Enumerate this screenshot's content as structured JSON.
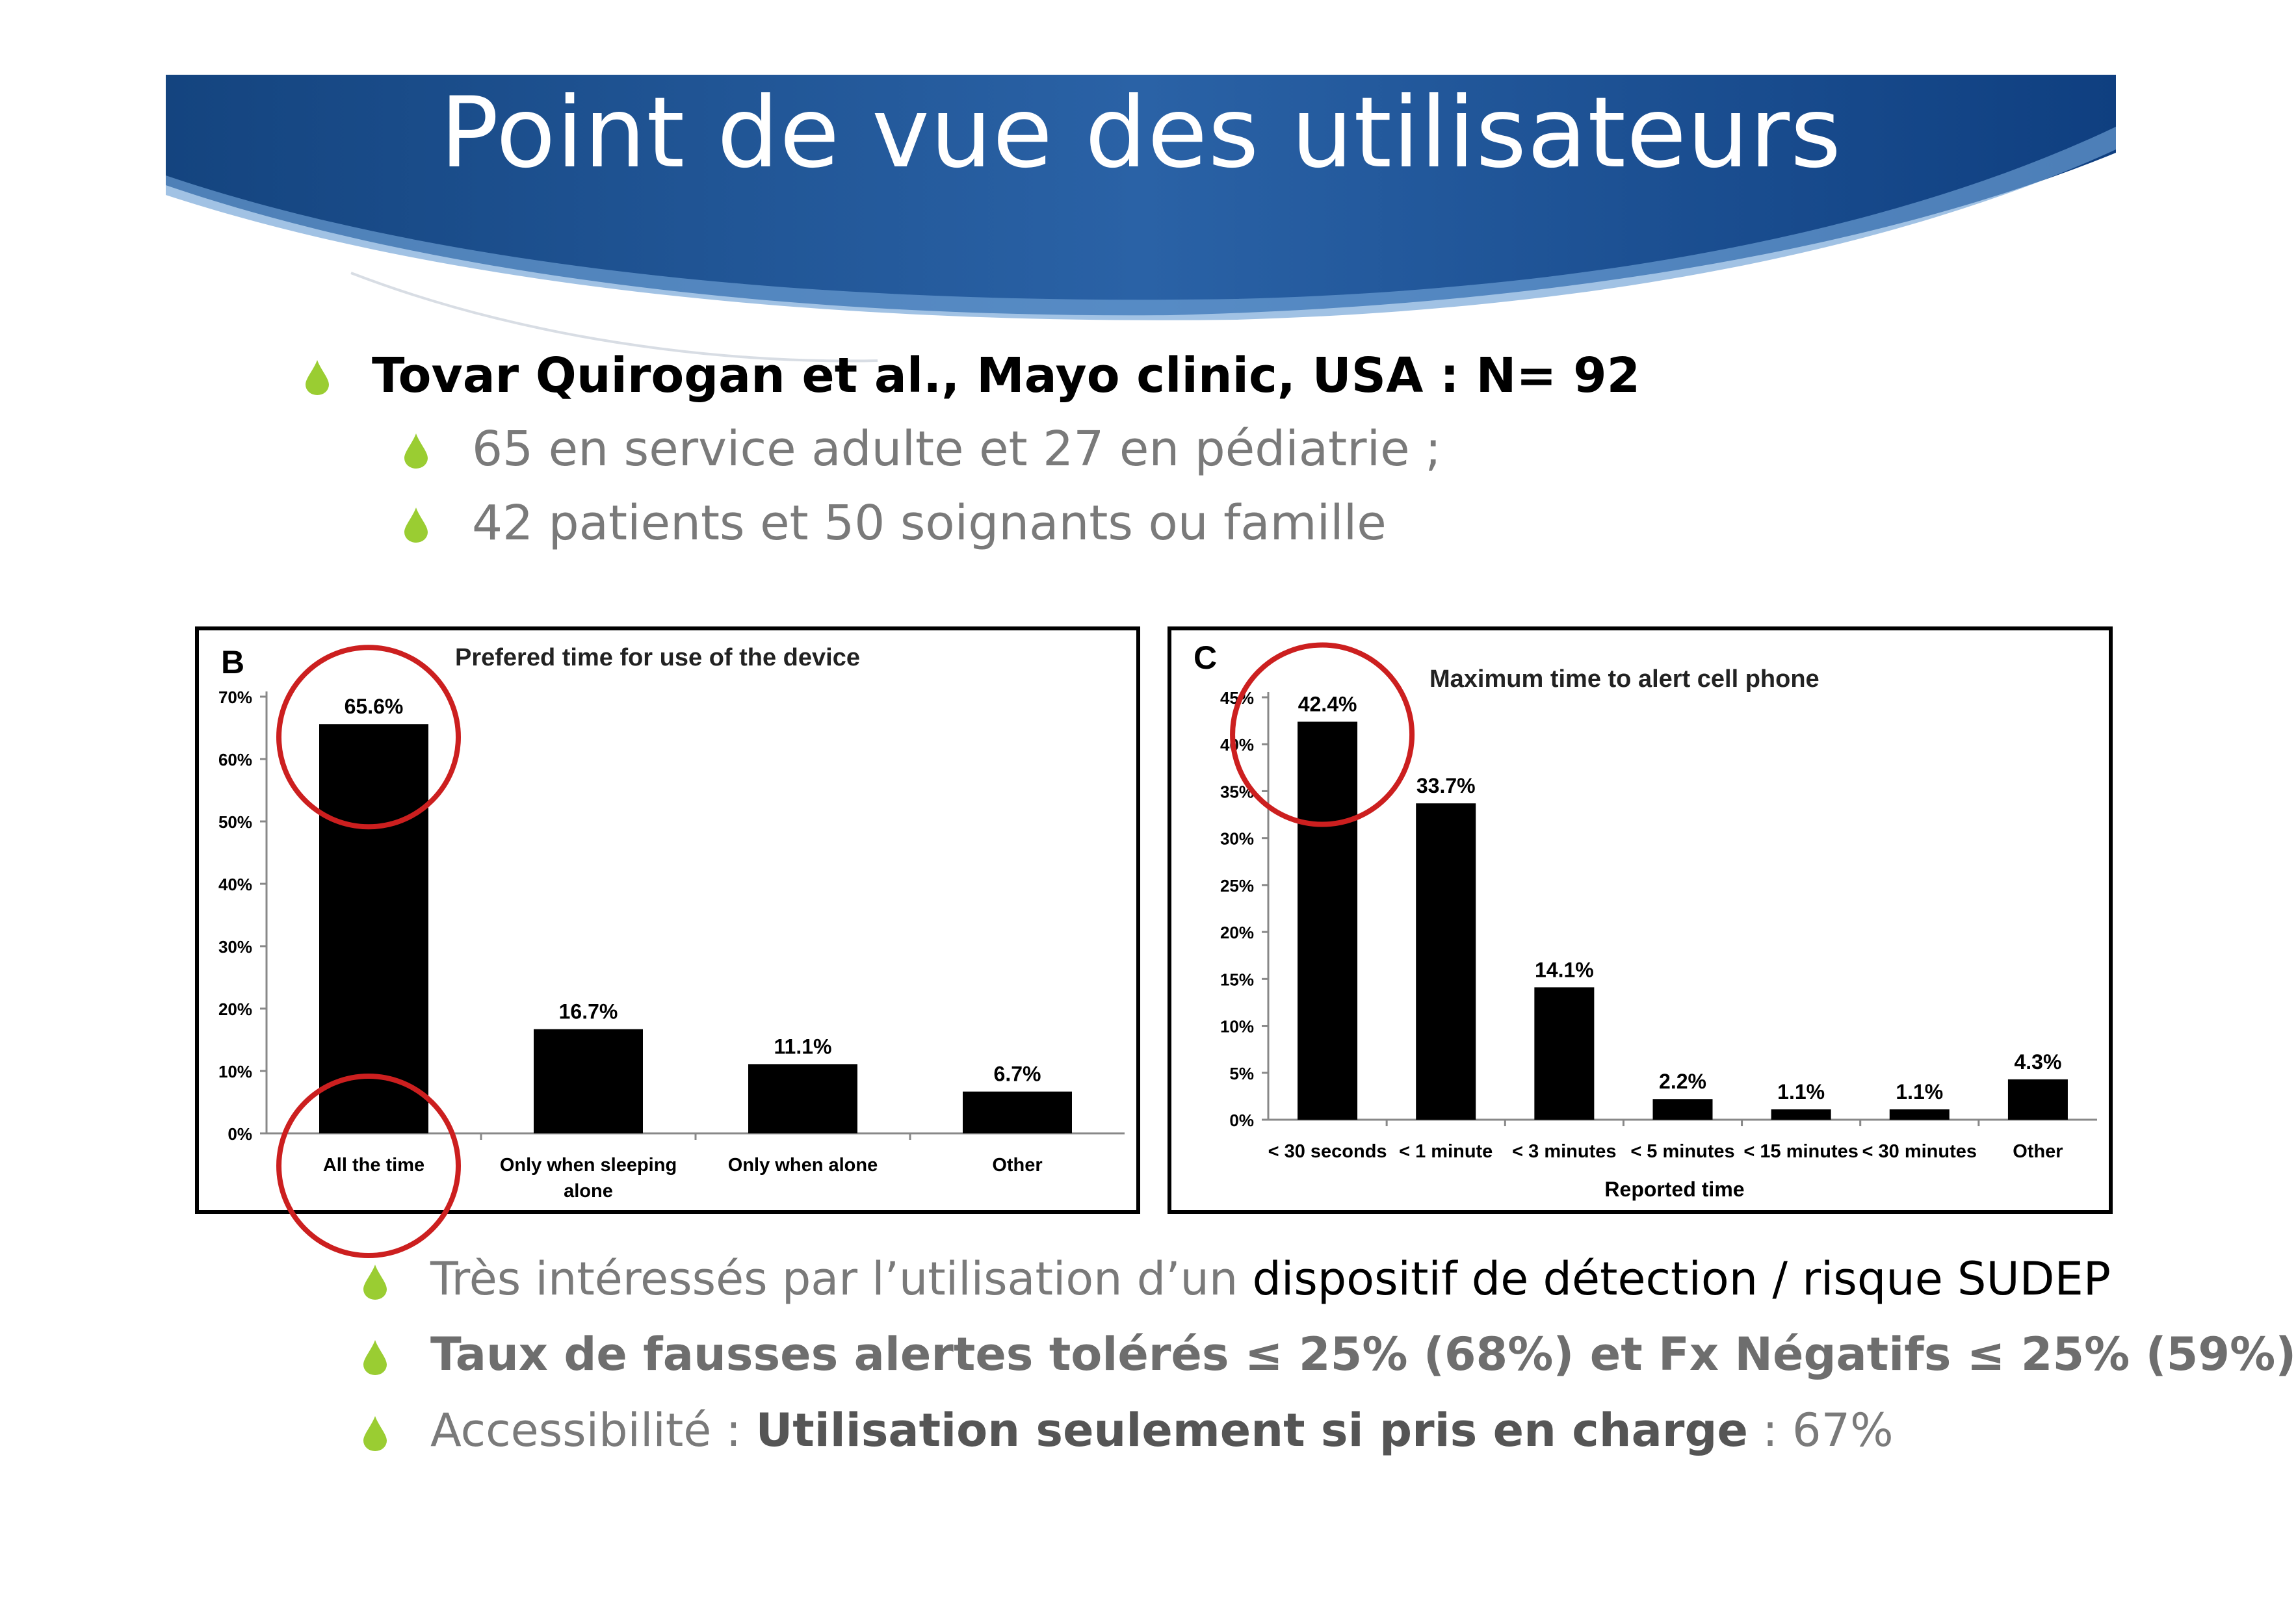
{
  "slide": {
    "title": "Point de vue des utilisateurs"
  },
  "bullets": {
    "study": "Tovar Quirogan et al., Mayo clinic, USA : N= 92",
    "sub1": "65 en service adulte et 27 en pédiatrie ;",
    "sub2": "42 patients et 50 soignants ou famille",
    "point1_grey": "Très intéressés par l’utilisation d’un ",
    "point1_dark": "dispositif de détection / risque SUDEP",
    "point2": "Taux de fausses alertes tolérés ≤ 25% (68%) et Fx Négatifs ≤ 25% (59%)",
    "point3_a": "Accessibilité : ",
    "point3_b": "Utilisation seulement si pris en charge",
    "point3_c": " : 67%"
  },
  "colors": {
    "banner_dark": "#0f3f80",
    "banner_light": "#4b88c7",
    "bullet_green": "#9acd32",
    "bar": "#000000",
    "highlight_circle": "#cc1f1f"
  },
  "chart_data": [
    {
      "type": "bar",
      "panel_label": "B",
      "title": "Prefered time for use of the device",
      "categories": [
        "All the time",
        "Only when  sleeping alone",
        "Only when alone",
        "Other"
      ],
      "values": [
        65.6,
        16.7,
        11.1,
        6.7
      ],
      "data_labels": [
        "65.6%",
        "16.7%",
        "11.1%",
        "6.7%"
      ],
      "xlabel": "",
      "ylabel": "",
      "ylim": [
        0,
        70
      ],
      "yticks": [
        "0%",
        "10%",
        "20%",
        "30%",
        "40%",
        "50%",
        "60%",
        "70%"
      ],
      "grid": false,
      "highlighted": [
        "All the time"
      ]
    },
    {
      "type": "bar",
      "panel_label": "C",
      "title": "Maximum time to alert cell phone",
      "categories": [
        "< 30 seconds",
        "< 1 minute",
        "< 3 minutes",
        "< 5 minutes",
        "< 15 minutes",
        "< 30 minutes",
        "Other"
      ],
      "values": [
        42.4,
        33.7,
        14.1,
        2.2,
        1.1,
        1.1,
        4.3
      ],
      "data_labels": [
        "42.4%",
        "33.7%",
        "14.1%",
        "2.2%",
        "1.1%",
        "1.1%",
        "4.3%"
      ],
      "xlabel": "Reported time",
      "ylabel": "",
      "ylim": [
        0,
        45
      ],
      "yticks": [
        "0%",
        "5%",
        "10%",
        "15%",
        "20%",
        "25%",
        "30%",
        "35%",
        "40%",
        "45%"
      ],
      "grid": false,
      "highlighted": [
        "< 30 seconds"
      ]
    }
  ]
}
